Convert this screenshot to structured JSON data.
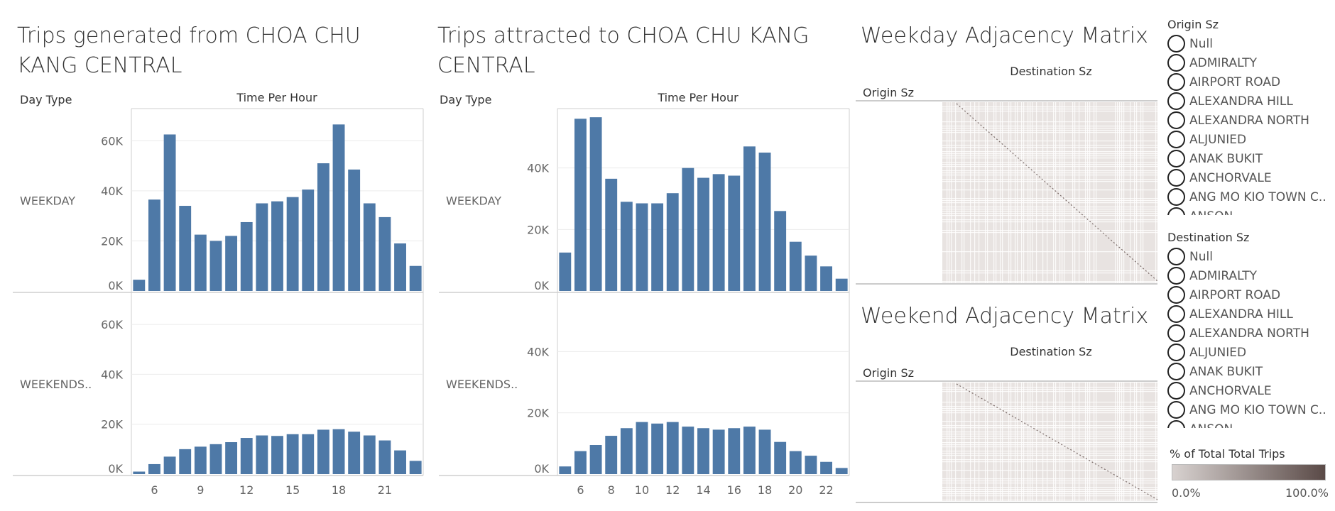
{
  "panels": {
    "generated_title": "Trips generated from CHOA CHU KANG CENTRAL",
    "attracted_title": "Trips attracted to CHOA CHU KANG CENTRAL",
    "weekday_matrix_title": "Weekday Adjacency Matrix",
    "weekend_matrix_title": "Weekend Adjacency Matrix",
    "day_type_header": "Day Type",
    "time_header": "Time Per Hour",
    "origin_header": "Origin Sz",
    "destination_header": "Destination Sz",
    "row_weekday": "WEEKDAY",
    "row_weekend": "WEEKENDS.."
  },
  "chart_data": [
    {
      "type": "bar",
      "title": "Trips generated from CHOA CHU KANG CENTRAL",
      "x": [
        5,
        6,
        7,
        8,
        9,
        10,
        11,
        12,
        13,
        14,
        15,
        16,
        17,
        18,
        19,
        20,
        21,
        22,
        23
      ],
      "x_ticks": [
        6,
        9,
        12,
        15,
        18,
        21
      ],
      "xlabel": "Time Per Hour",
      "ylim": [
        0,
        70000
      ],
      "y_ticks": [
        0,
        20000,
        40000,
        60000
      ],
      "y_tick_labels": [
        "0K",
        "20K",
        "40K",
        "60K"
      ],
      "series": [
        {
          "name": "WEEKDAY",
          "values": [
            4500,
            36500,
            62500,
            34000,
            22500,
            20000,
            22000,
            27500,
            35000,
            35800,
            37500,
            40500,
            51000,
            66500,
            48500,
            35000,
            29500,
            19000,
            10000
          ]
        },
        {
          "name": "WEEKENDS..",
          "values": [
            1000,
            4000,
            7000,
            10000,
            11000,
            12000,
            12800,
            14500,
            15500,
            15300,
            16000,
            16000,
            17800,
            18000,
            17000,
            15500,
            13500,
            9500,
            5300
          ]
        }
      ]
    },
    {
      "type": "bar",
      "title": "Trips attracted to CHOA CHU KANG CENTRAL",
      "x": [
        5,
        6,
        7,
        8,
        9,
        10,
        11,
        12,
        13,
        14,
        15,
        16,
        17,
        18,
        19,
        20,
        21,
        22,
        23
      ],
      "x_ticks": [
        6,
        8,
        10,
        12,
        14,
        16,
        18,
        20,
        22
      ],
      "xlabel": "Time Per Hour",
      "ylim": [
        0,
        57000
      ],
      "y_ticks": [
        0,
        20000,
        40000
      ],
      "y_tick_labels": [
        "0K",
        "20K",
        "40K"
      ],
      "series": [
        {
          "name": "WEEKDAY",
          "values": [
            12500,
            56000,
            56500,
            36500,
            29000,
            28500,
            28500,
            31800,
            40000,
            36800,
            38000,
            37500,
            47000,
            45000,
            26000,
            16000,
            11500,
            8000,
            4000
          ]
        },
        {
          "name": "WEEKENDS..",
          "values": [
            2500,
            7500,
            9500,
            12500,
            15000,
            17000,
            16500,
            17000,
            15500,
            15000,
            14500,
            15000,
            15500,
            14500,
            10500,
            7500,
            6000,
            4000,
            2000
          ]
        }
      ]
    }
  ],
  "filters": {
    "origin": {
      "title": "Origin Sz",
      "items": [
        "Null",
        "ADMIRALTY",
        "AIRPORT ROAD",
        "ALEXANDRA HILL",
        "ALEXANDRA NORTH",
        "ALJUNIED",
        "ANAK BUKIT",
        "ANCHORVALE",
        "ANG MO KIO TOWN C..",
        "ANSON"
      ]
    },
    "destination": {
      "title": "Destination Sz",
      "items": [
        "Null",
        "ADMIRALTY",
        "AIRPORT ROAD",
        "ALEXANDRA HILL",
        "ALEXANDRA NORTH",
        "ALJUNIED",
        "ANAK BUKIT",
        "ANCHORVALE",
        "ANG MO KIO TOWN C..",
        "ANSON"
      ]
    }
  },
  "legend": {
    "title": "% of Total Total Trips",
    "min_label": "0.0%",
    "max_label": "100.0%",
    "color_low": "#d8d2d0",
    "color_high": "#5a4a47"
  },
  "colors": {
    "bar": "#4e79a7",
    "grid": "#ececec",
    "axis": "#cfcfcf"
  }
}
